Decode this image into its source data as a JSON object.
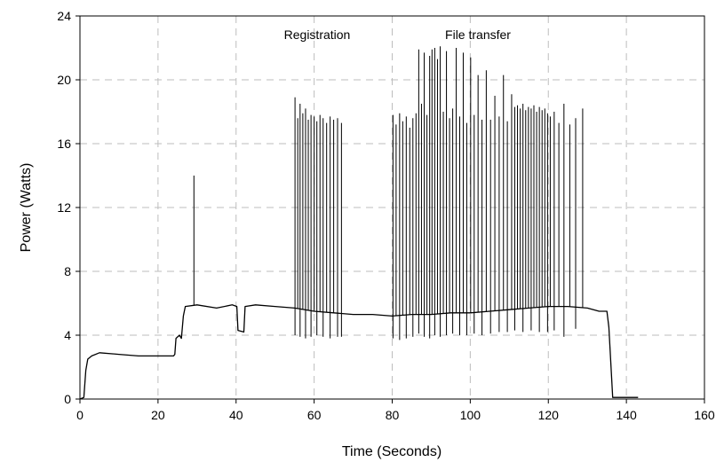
{
  "chart_data": {
    "type": "line",
    "xlabel": "Time (Seconds)",
    "ylabel": "Power (Watts)",
    "xlim": [
      0,
      160
    ],
    "ylim": [
      0,
      24
    ],
    "xticks": [
      "0",
      "20",
      "40",
      "60",
      "80",
      "100",
      "120",
      "140",
      "160"
    ],
    "yticks": [
      "0",
      "4",
      "8",
      "12",
      "16",
      "20",
      "24"
    ],
    "grid": true,
    "annotations": [
      {
        "text": "Registration",
        "x": 60,
        "y": 22.6
      },
      {
        "text": "File transfer",
        "x": 93,
        "y": 22.6
      }
    ],
    "series": [
      {
        "baseline": [
          [
            0,
            0
          ],
          [
            1,
            0.1
          ],
          [
            1.5,
            1.8
          ],
          [
            2,
            2.5
          ],
          [
            3,
            2.7
          ],
          [
            5,
            2.9
          ],
          [
            10,
            2.8
          ],
          [
            15,
            2.7
          ],
          [
            20,
            2.7
          ],
          [
            24,
            2.7
          ],
          [
            24.3,
            2.8
          ],
          [
            24.6,
            3.8
          ],
          [
            25.5,
            4.0
          ],
          [
            26,
            3.8
          ],
          [
            26.5,
            5.2
          ],
          [
            27,
            5.8
          ],
          [
            30,
            5.9
          ],
          [
            35,
            5.7
          ],
          [
            39,
            5.9
          ],
          [
            40.2,
            5.8
          ],
          [
            40.5,
            4.3
          ],
          [
            42,
            4.2
          ],
          [
            42.3,
            5.8
          ],
          [
            45,
            5.9
          ],
          [
            50,
            5.8
          ],
          [
            55,
            5.7
          ],
          [
            60,
            5.5
          ],
          [
            65,
            5.4
          ],
          [
            70,
            5.3
          ],
          [
            75,
            5.3
          ],
          [
            80,
            5.2
          ],
          [
            85,
            5.3
          ],
          [
            90,
            5.3
          ],
          [
            95,
            5.4
          ],
          [
            100,
            5.4
          ],
          [
            105,
            5.5
          ],
          [
            110,
            5.6
          ],
          [
            115,
            5.7
          ],
          [
            120,
            5.8
          ],
          [
            125,
            5.8
          ],
          [
            130,
            5.7
          ],
          [
            133,
            5.5
          ],
          [
            135,
            5.5
          ],
          [
            135.5,
            4.5
          ],
          [
            136.5,
            0.1
          ],
          [
            140,
            0.1
          ],
          [
            143,
            0.1
          ]
        ],
        "spikes": [
          [
            29.2,
            14.0
          ],
          [
            55.1,
            18.9
          ],
          [
            55.8,
            17.6
          ],
          [
            56.4,
            18.5
          ],
          [
            57.1,
            17.9
          ],
          [
            57.8,
            18.2
          ],
          [
            58.5,
            17.5
          ],
          [
            59.2,
            17.8
          ],
          [
            60.0,
            17.7
          ],
          [
            60.7,
            17.4
          ],
          [
            61.5,
            17.8
          ],
          [
            62.3,
            17.6
          ],
          [
            63.2,
            17.3
          ],
          [
            64.1,
            17.7
          ],
          [
            65.0,
            17.5
          ],
          [
            66.0,
            17.6
          ],
          [
            67.0,
            17.3
          ],
          [
            80.2,
            17.8
          ],
          [
            81.0,
            17.2
          ],
          [
            81.9,
            17.9
          ],
          [
            82.7,
            17.4
          ],
          [
            83.6,
            17.7
          ],
          [
            84.5,
            17.0
          ],
          [
            85.3,
            17.6
          ],
          [
            86.1,
            17.9
          ],
          [
            86.8,
            21.9
          ],
          [
            87.5,
            18.5
          ],
          [
            88.2,
            21.7
          ],
          [
            88.9,
            17.8
          ],
          [
            89.6,
            21.5
          ],
          [
            90.2,
            21.9
          ],
          [
            90.9,
            22.0
          ],
          [
            91.6,
            21.3
          ],
          [
            92.3,
            22.1
          ],
          [
            93.1,
            18.0
          ],
          [
            93.9,
            21.8
          ],
          [
            94.7,
            17.6
          ],
          [
            95.5,
            18.2
          ],
          [
            96.4,
            22.0
          ],
          [
            97.3,
            17.7
          ],
          [
            98.2,
            21.7
          ],
          [
            99.1,
            17.3
          ],
          [
            100.1,
            21.4
          ],
          [
            101.0,
            17.8
          ],
          [
            102.0,
            20.3
          ],
          [
            103.0,
            17.5
          ],
          [
            104.1,
            20.6
          ],
          [
            105.2,
            17.5
          ],
          [
            106.3,
            19.0
          ],
          [
            107.4,
            17.7
          ],
          [
            108.5,
            20.3
          ],
          [
            109.5,
            17.4
          ],
          [
            110.6,
            19.1
          ],
          [
            111.4,
            18.3
          ],
          [
            112.1,
            18.4
          ],
          [
            112.8,
            18.2
          ],
          [
            113.5,
            18.5
          ],
          [
            114.2,
            18.1
          ],
          [
            114.9,
            18.3
          ],
          [
            115.6,
            18.2
          ],
          [
            116.3,
            18.4
          ],
          [
            117.0,
            18.0
          ],
          [
            117.7,
            18.3
          ],
          [
            118.4,
            18.1
          ],
          [
            119.1,
            18.2
          ],
          [
            119.8,
            17.9
          ],
          [
            120.5,
            17.7
          ],
          [
            121.5,
            18.0
          ],
          [
            122.7,
            17.3
          ],
          [
            124.0,
            18.5
          ],
          [
            125.5,
            17.2
          ],
          [
            127.0,
            17.6
          ],
          [
            128.8,
            18.2
          ]
        ],
        "dips": [
          [
            55.1,
            4.0
          ],
          [
            56.4,
            3.9
          ],
          [
            57.8,
            3.8
          ],
          [
            59.2,
            3.9
          ],
          [
            60.7,
            4.0
          ],
          [
            62.3,
            3.9
          ],
          [
            64.1,
            3.8
          ],
          [
            66.0,
            3.9
          ],
          [
            67.0,
            3.9
          ],
          [
            80.2,
            3.8
          ],
          [
            81.9,
            3.7
          ],
          [
            83.6,
            3.8
          ],
          [
            85.3,
            3.9
          ],
          [
            86.8,
            4.1
          ],
          [
            88.2,
            3.9
          ],
          [
            89.6,
            3.8
          ],
          [
            90.9,
            4.0
          ],
          [
            92.3,
            3.9
          ],
          [
            93.9,
            4.0
          ],
          [
            95.5,
            4.1
          ],
          [
            97.3,
            4.0
          ],
          [
            99.1,
            4.0
          ],
          [
            101.0,
            4.1
          ],
          [
            103.0,
            4.0
          ],
          [
            105.2,
            4.1
          ],
          [
            107.4,
            4.2
          ],
          [
            109.5,
            4.2
          ],
          [
            111.4,
            4.3
          ],
          [
            113.5,
            4.2
          ],
          [
            115.6,
            4.3
          ],
          [
            117.7,
            4.2
          ],
          [
            119.8,
            4.2
          ],
          [
            121.5,
            4.3
          ],
          [
            124.0,
            3.9
          ],
          [
            127.0,
            4.4
          ]
        ]
      }
    ]
  }
}
